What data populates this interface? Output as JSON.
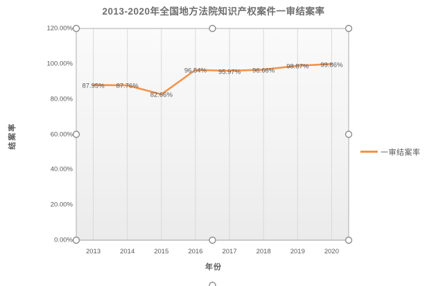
{
  "chart_data": {
    "type": "line",
    "title": "2013-2020年全国地方法院知识产权案件一审结案率",
    "categories": [
      "2013",
      "2014",
      "2015",
      "2016",
      "2017",
      "2018",
      "2019",
      "2020"
    ],
    "series": [
      {
        "name": "一审结案率",
        "values": [
          87.95,
          87.76,
          82.66,
          96.54,
          95.97,
          96.66,
          98.87,
          99.86
        ],
        "color": "#F2934C"
      }
    ],
    "data_labels": [
      "87.95%",
      "87.76%",
      "82.66%",
      "96.54%",
      "95.97%",
      "96.66%",
      "98.87%",
      "99.86%"
    ],
    "xlabel": "年份",
    "ylabel": "结案率",
    "ylim": [
      0,
      120
    ],
    "y_tick_labels": [
      "0.00%",
      "20.00%",
      "40.00%",
      "60.00%",
      "80.00%",
      "100.00%",
      "120.00%"
    ],
    "grid": "vertical-only",
    "legend_position": "right-middle",
    "chart_selected": true
  },
  "legend": {
    "label": "一审结案率"
  },
  "colors": {
    "line": "#F2934C",
    "gridline": "#D9D9D9",
    "axis_line": "#9E9E9E",
    "selection_border": "#ACACAC",
    "handle_stroke": "#8C8C8C",
    "plot_fill_top": "#FAFAFA",
    "plot_fill_bottom": "#EBEBEB",
    "label_text": "#595959",
    "title_text": "#6E6E6E"
  }
}
